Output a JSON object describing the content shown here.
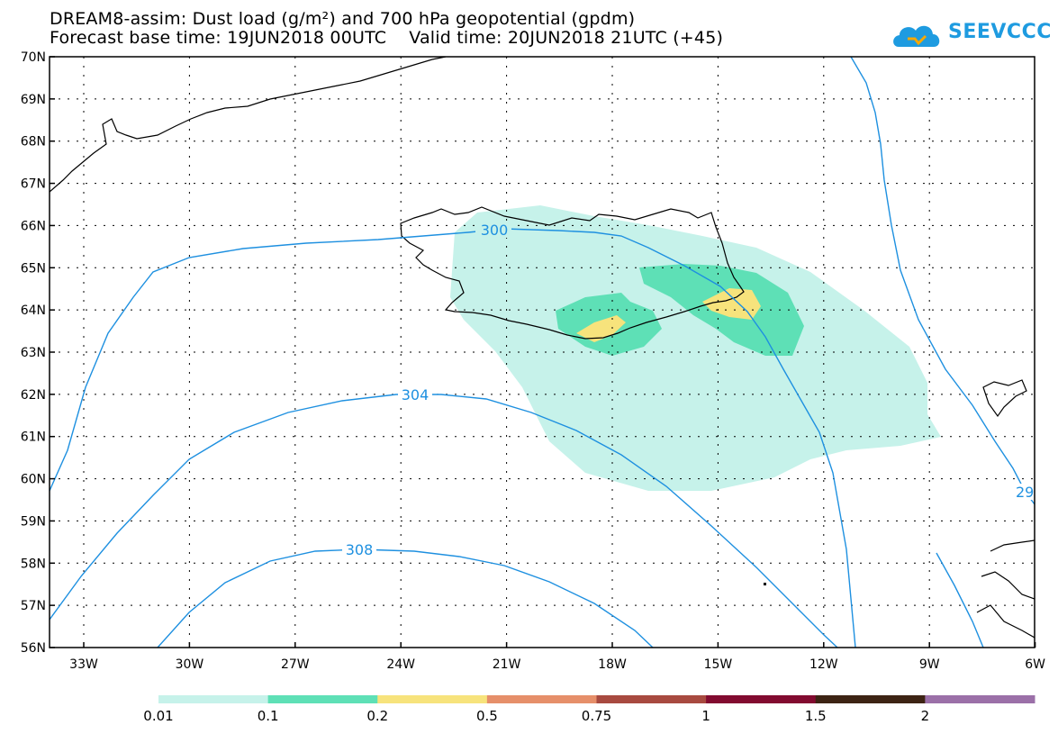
{
  "title": {
    "line1": "DREAM8-assim: Dust load (g/m²) and 700 hPa geopotential (gpdm)",
    "line2": "Forecast base time: 19JUN2018 00UTC    Valid time: 20JUN2018 21UTC (+45)"
  },
  "logo": {
    "text": "SEEVCCC",
    "color": "#1e9be0"
  },
  "axes": {
    "lat_labels": [
      "70N",
      "69N",
      "68N",
      "67N",
      "66N",
      "65N",
      "64N",
      "63N",
      "62N",
      "61N",
      "60N",
      "59N",
      "58N",
      "57N",
      "56N"
    ],
    "lon_labels": [
      "33W",
      "30W",
      "27W",
      "24W",
      "21W",
      "18W",
      "15W",
      "12W",
      "9W",
      "6W"
    ]
  },
  "contours": {
    "line_color": "#1e90e0",
    "labels": [
      "300",
      "304",
      "308",
      "29"
    ]
  },
  "colorbar": {
    "colors": [
      "#c6f2ea",
      "#5ee0b6",
      "#f7e37c",
      "#e68f6a",
      "#a84a40",
      "#820b30",
      "#3d2414",
      "#9b70a8"
    ],
    "labels": [
      "0.01",
      "0.1",
      "0.2",
      "0.5",
      "0.75",
      "1",
      "1.5",
      "2"
    ]
  }
}
